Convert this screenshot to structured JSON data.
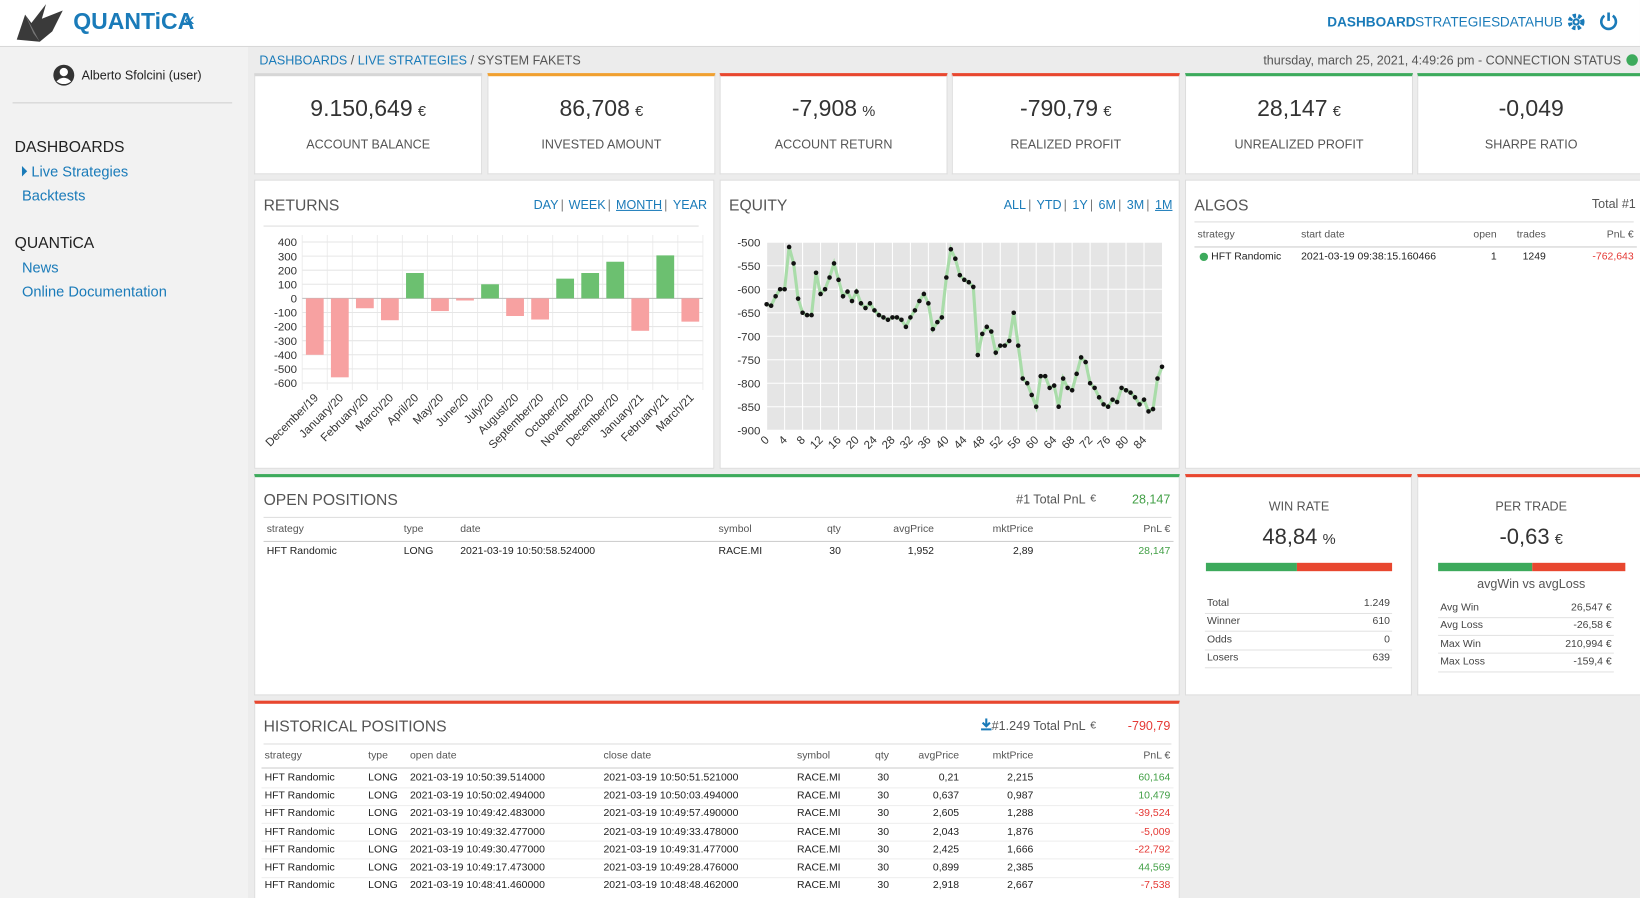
{
  "header": {
    "logo": "QUANTiCA",
    "collapse": "«",
    "nav": [
      "DASHBOARD",
      "STRATEGIES",
      "DATAHUB"
    ]
  },
  "sidebar": {
    "user": "Alberto Sfolcini (user)",
    "sections": [
      {
        "title": "DASHBOARDS",
        "items": [
          "Live Strategies",
          "Backtests"
        ]
      },
      {
        "title": "QUANTiCA",
        "items": [
          "News",
          "Online Documentation"
        ]
      }
    ]
  },
  "breadcrumb": {
    "items": [
      "DASHBOARDS",
      "LIVE STRATEGIES",
      "SYSTEM FAKETS"
    ],
    "status": "thursday, march 25, 2021, 4:49:26 pm - CONNECTION STATUS"
  },
  "kpis": [
    {
      "value": "9.150,649",
      "unit": "€",
      "label": "ACCOUNT BALANCE",
      "color": "#d6d6d6"
    },
    {
      "value": "86,708",
      "unit": "€",
      "label": "INVESTED AMOUNT",
      "color": "#f0a030"
    },
    {
      "value": "-7,908",
      "unit": "%",
      "label": "ACCOUNT RETURN",
      "color": "#e8472f"
    },
    {
      "value": "-790,79",
      "unit": "€",
      "label": "REALIZED PROFIT",
      "color": "#e8472f"
    },
    {
      "value": "28,147",
      "unit": "€",
      "label": "UNREALIZED PROFIT",
      "color": "#3daa5c"
    },
    {
      "value": "-0,049",
      "unit": "",
      "label": "SHARPE RATIO",
      "color": "#3daa5c"
    }
  ],
  "chart_data": [
    {
      "type": "bar",
      "title": "RETURNS",
      "periods": [
        "DAY",
        "WEEK",
        "MONTH",
        "YEAR"
      ],
      "categories": [
        "December/19",
        "January/20",
        "February/20",
        "March/20",
        "April/20",
        "May/20",
        "June/20",
        "July/20",
        "August/20",
        "September/20",
        "October/20",
        "November/20",
        "December/20",
        "January/21",
        "February/21",
        "March/21"
      ],
      "values": [
        -400,
        -560,
        -70,
        -155,
        180,
        -90,
        -15,
        100,
        -125,
        -150,
        140,
        180,
        260,
        -230,
        305,
        -165
      ],
      "positive_color": "#6cc070",
      "negative_color": "#f7a1a1",
      "ylim": [
        -650,
        450
      ],
      "yticks": [
        400,
        300,
        200,
        100,
        0,
        -100,
        -200,
        -300,
        -400,
        -500,
        -600
      ],
      "grid": true
    },
    {
      "type": "line",
      "title": "EQUITY",
      "periods": [
        "ALL",
        "YTD",
        "1Y",
        "6M",
        "3M",
        "1M"
      ],
      "x": [
        0,
        1,
        2,
        3,
        4,
        5,
        6,
        7,
        8,
        9,
        10,
        11,
        12,
        13,
        14,
        15,
        16,
        17,
        18,
        19,
        20,
        21,
        22,
        23,
        24,
        25,
        26,
        27,
        28,
        29,
        30,
        31,
        32,
        33,
        34,
        35,
        36,
        37,
        38,
        39,
        40,
        41,
        42,
        43,
        44,
        45,
        46,
        47,
        48,
        49,
        50,
        51,
        52,
        53,
        54,
        55,
        56,
        57,
        58,
        59,
        60,
        61,
        62,
        63,
        64,
        65,
        66,
        67,
        68,
        69,
        70,
        71,
        72,
        73,
        74,
        75,
        76,
        77,
        78,
        79,
        80,
        81,
        82,
        83,
        84,
        85,
        86,
        87,
        88
      ],
      "values": [
        -632,
        -635,
        -615,
        -600,
        -600,
        -510,
        -545,
        -620,
        -650,
        -655,
        -655,
        -565,
        -610,
        -600,
        -575,
        -545,
        -580,
        -615,
        -605,
        -625,
        -605,
        -630,
        -640,
        -630,
        -645,
        -655,
        -660,
        -665,
        -660,
        -660,
        -665,
        -680,
        -660,
        -645,
        -625,
        -610,
        -630,
        -685,
        -670,
        -660,
        -575,
        -515,
        -535,
        -570,
        -580,
        -585,
        -595,
        -740,
        -695,
        -680,
        -690,
        -735,
        -720,
        -720,
        -710,
        -650,
        -720,
        -790,
        -800,
        -825,
        -850,
        -785,
        -785,
        -810,
        -805,
        -850,
        -790,
        -810,
        -815,
        -780,
        -745,
        -755,
        -800,
        -810,
        -830,
        -845,
        -850,
        -835,
        -840,
        -810,
        -815,
        -820,
        -830,
        -845,
        -835,
        -860,
        -855,
        -790,
        -765
      ],
      "color": "#a9dca9",
      "marker_color": "#111111",
      "xlim": [
        0,
        88
      ],
      "ylim": [
        -900,
        -500
      ],
      "xticks": [
        0,
        4,
        8,
        12,
        16,
        20,
        24,
        28,
        32,
        36,
        40,
        44,
        48,
        52,
        56,
        60,
        64,
        68,
        72,
        76,
        80,
        84
      ],
      "yticks": [
        -500,
        -550,
        -600,
        -650,
        -700,
        -750,
        -800,
        -850,
        -900
      ],
      "grid": true
    }
  ],
  "algos": {
    "title": "ALGOS",
    "total": "Total #1",
    "columns": [
      "strategy",
      "start date",
      "open",
      "trades",
      "PnL €"
    ],
    "rows": [
      [
        "HFT Randomic",
        "2021-03-19 09:38:15.160466",
        "1",
        "1249",
        "-762,643"
      ]
    ]
  },
  "open_positions": {
    "title": "OPEN POSITIONS",
    "total_label": "#1 Total PnL",
    "total_unit": "€",
    "total": "28,147",
    "columns": [
      "strategy",
      "type",
      "date",
      "symbol",
      "qty",
      "avgPrice",
      "mktPrice",
      "PnL €"
    ],
    "rows": [
      [
        "HFT Randomic",
        "LONG",
        "2021-03-19 10:50:58.524000",
        "RACE.MI",
        "30",
        "1,952",
        "2,89",
        "28,147"
      ]
    ]
  },
  "win_rate": {
    "title": "WIN RATE",
    "value": "48,84",
    "unit": "%",
    "stats": [
      [
        "Total",
        "1.249"
      ],
      [
        "Winner",
        "610"
      ],
      [
        "Odds",
        "0"
      ],
      [
        "Losers",
        "639"
      ]
    ]
  },
  "per_trade": {
    "title": "PER TRADE",
    "value": "-0,63",
    "unit": "€",
    "subtitle": "avgWin vs avgLoss",
    "stats": [
      [
        "Avg Win",
        "26,547 €"
      ],
      [
        "Avg Loss",
        "-26,58 €"
      ],
      [
        "Max Win",
        "210,994 €"
      ],
      [
        "Max Loss",
        "-159,4 €"
      ]
    ]
  },
  "historical_positions": {
    "title": "HISTORICAL POSITIONS",
    "total_label": "#1.249 Total PnL",
    "total_unit": "€",
    "total": "-790,79",
    "columns": [
      "strategy",
      "type",
      "open date",
      "close date",
      "symbol",
      "qty",
      "avgPrice",
      "mktPrice",
      "PnL €"
    ],
    "rows": [
      [
        "HFT Randomic",
        "LONG",
        "2021-03-19 10:50:39.514000",
        "2021-03-19 10:50:51.521000",
        "RACE.MI",
        "30",
        "0,21",
        "2,215",
        "60,164"
      ],
      [
        "HFT Randomic",
        "LONG",
        "2021-03-19 10:50:02.494000",
        "2021-03-19 10:50:03.494000",
        "RACE.MI",
        "30",
        "0,637",
        "0,987",
        "10,479"
      ],
      [
        "HFT Randomic",
        "LONG",
        "2021-03-19 10:49:42.483000",
        "2021-03-19 10:49:57.490000",
        "RACE.MI",
        "30",
        "2,605",
        "1,288",
        "-39,524"
      ],
      [
        "HFT Randomic",
        "LONG",
        "2021-03-19 10:49:32.477000",
        "2021-03-19 10:49:33.478000",
        "RACE.MI",
        "30",
        "2,043",
        "1,876",
        "-5,009"
      ],
      [
        "HFT Randomic",
        "LONG",
        "2021-03-19 10:49:30.477000",
        "2021-03-19 10:49:31.477000",
        "RACE.MI",
        "30",
        "2,425",
        "1,666",
        "-22,792"
      ],
      [
        "HFT Randomic",
        "LONG",
        "2021-03-19 10:49:17.473000",
        "2021-03-19 10:49:28.476000",
        "RACE.MI",
        "30",
        "0,899",
        "2,385",
        "44,569"
      ],
      [
        "HFT Randomic",
        "LONG",
        "2021-03-19 10:48:41.460000",
        "2021-03-19 10:48:48.462000",
        "RACE.MI",
        "30",
        "2,918",
        "2,667",
        "-7,538"
      ]
    ]
  }
}
